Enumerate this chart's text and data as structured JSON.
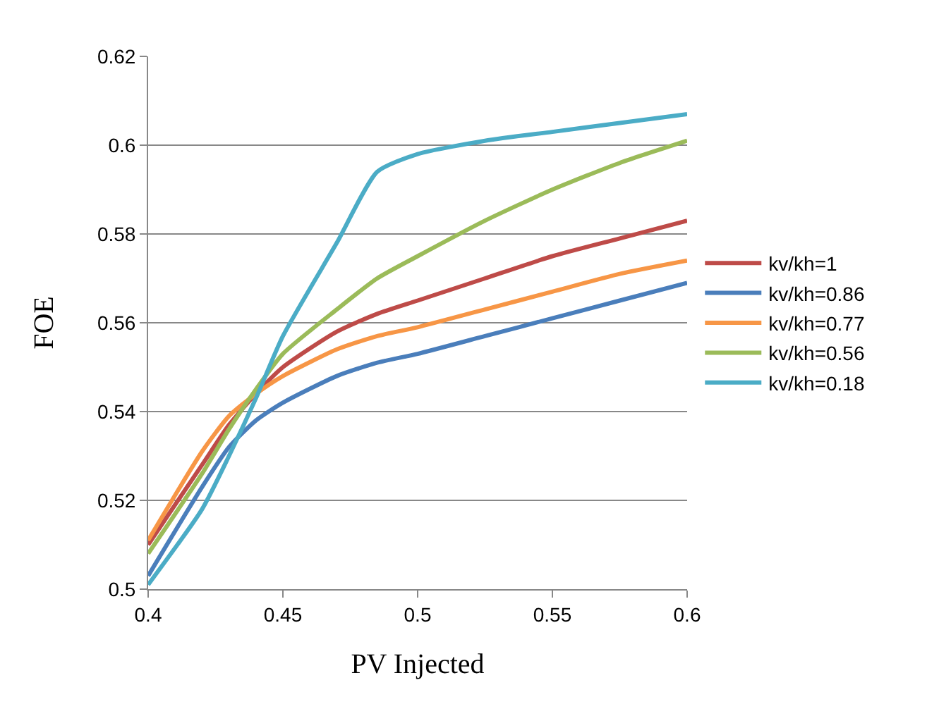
{
  "chart_data": {
    "type": "line",
    "xlabel": "PV Injected",
    "ylabel": "FOE",
    "xlim": [
      0.4,
      0.6
    ],
    "xticks": [
      0.4,
      0.45,
      0.5,
      0.55,
      0.6
    ],
    "ylim": [
      0.5,
      0.62
    ],
    "yticks": [
      0.5,
      0.52,
      0.54,
      0.56,
      0.58,
      0.6,
      0.62
    ],
    "grid": "y",
    "legend": "right",
    "marker": "none",
    "line_style": "solid",
    "x": [
      0.4,
      0.42,
      0.43,
      0.44,
      0.45,
      0.47,
      0.485,
      0.5,
      0.525,
      0.55,
      0.575,
      0.6
    ],
    "series": [
      {
        "name": "kv/kh=1",
        "color": "#be4b48",
        "values": [
          0.51,
          0.528,
          0.537,
          0.544,
          0.55,
          0.558,
          0.562,
          0.565,
          0.57,
          0.575,
          0.579,
          0.583
        ]
      },
      {
        "name": "kv/kh=0.86",
        "color": "#4a7ebb",
        "values": [
          0.503,
          0.523,
          0.532,
          0.538,
          0.542,
          0.548,
          0.551,
          0.553,
          0.557,
          0.561,
          0.565,
          0.569
        ]
      },
      {
        "name": "kv/kh=0.77",
        "color": "#f79646",
        "values": [
          0.511,
          0.531,
          0.539,
          0.544,
          0.548,
          0.554,
          0.557,
          0.559,
          0.563,
          0.567,
          0.571,
          0.574
        ]
      },
      {
        "name": "kv/kh=0.56",
        "color": "#9bbb59",
        "values": [
          0.508,
          0.526,
          0.536,
          0.545,
          0.553,
          0.563,
          0.57,
          0.575,
          0.583,
          0.59,
          0.596,
          0.601
        ]
      },
      {
        "name": "kv/kh=0.18",
        "color": "#4bacc6",
        "values": [
          0.501,
          0.518,
          0.53,
          0.543,
          0.557,
          0.578,
          0.594,
          0.598,
          0.601,
          0.603,
          0.605,
          0.607
        ]
      }
    ]
  }
}
